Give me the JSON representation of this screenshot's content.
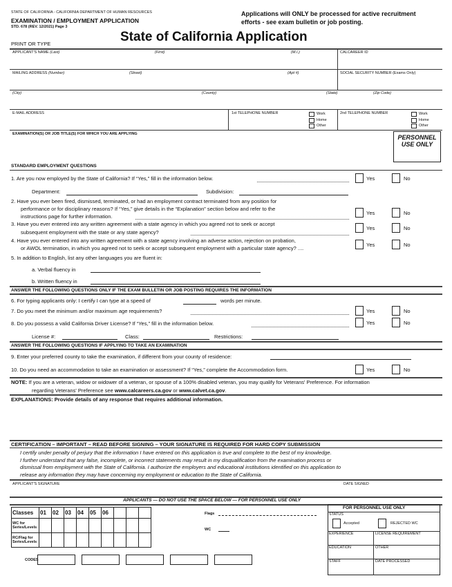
{
  "header": {
    "agency": "STATE OF CALIFORNIA - CALIFORNIA DEPARTMENT OF HUMAN RESOURCES",
    "form_title": "EXAMINATION / EMPLOYMENT APPLICATION",
    "form_number": "STD. 678 (REV. 12/2021) Page 3",
    "notice_line1": "Applications will ONLY be processed for active recruitment",
    "notice_line2": "efforts - see exam bulletin or job posting.",
    "title": "State of California Application",
    "print_or_type": "PRINT OR TYPE"
  },
  "applicant": {
    "name_label": "APPLICANT'S NAME",
    "last": "(Last)",
    "first": "(First)",
    "mi": "(M.I.)",
    "calcareer_id": "CALCAREER ID",
    "mailing_label": "MAILING ADDRESS",
    "number": "(Number)",
    "street": "(Street)",
    "apt": "(Apt #)",
    "ssn": "SOCIAL SECURITY NUMBER (Exams Only)",
    "city": "(City)",
    "county": "(County)",
    "state": "(State)",
    "zip": "(Zip Code)",
    "email": "E-MAIL ADDRESS",
    "phone1": "1st TELEPHONE NUMBER",
    "phone2": "2nd TELEPHONE NUMBER",
    "phone_types": [
      "Work",
      "Home",
      "Other"
    ],
    "exam_titles": "EXAMINATION(S) OR JOB TITLE(S) FOR WHICH YOU ARE APPLYING",
    "personnel_use_1": "PERSONNEL",
    "personnel_use_2": "USE ONLY"
  },
  "yes": "Yes",
  "no": "No",
  "standard": {
    "heading": "STANDARD EMPLOYMENT QUESTIONS",
    "q1": "1.  Are you now employed by the State of California? If “Yes,” fill in the information below.",
    "department": "Department:",
    "subdivision": "Subdivision:",
    "q2a": "2.  Have you ever been fired, dismissed, terminated, or had an employment contract terminated from any position for",
    "q2b": "performance or for disciplinary reasons? If “Yes,” give details in the “Explanation” section below and refer to the",
    "q2c": "instructions page for further information.",
    "q3a": "3.  Have you ever entered into any written agreement with a state agency in which you agreed not to seek or accept",
    "q3b": "subsequent employment with the state or any state agency?",
    "q4a": "4.  Have you ever entered into any written agreement with a state agency involving an adverse action, rejection on probation,",
    "q4b": "or AWOL termination, in which you agreed not to seek or accept subsequent employment with a particular state agency? ....",
    "q5": "5.  In addition to English, list any other languages you are fluent in:",
    "q5a": "a. Verbal fluency in",
    "q5b": "b. Written fluency in"
  },
  "conditional": {
    "heading": "ANSWER THE FOLLOWING QUESTIONS ONLY IF THE EXAM BULLETIN OR JOB POSTING REQUIRES THE INFORMATION",
    "q6a": "6.  For typing applicants only: I certify I can type at a speed of",
    "q6b": "words per minute.",
    "q7": "7.  Do you meet the minimum and/or maximum age requirements?",
    "q8": "8.  Do you possess a valid California Driver License? If “Yes,” fill in the information below.",
    "license": "License #:",
    "class": "Class:",
    "restrictions": "Restrictions:"
  },
  "exam": {
    "heading": "ANSWER THE FOLLOWING QUESTIONS IF APPLYING TO TAKE AN EXAMINATION",
    "q9": "9.  Enter your preferred county to take the examination, if different from your county of residence:",
    "q10": "10. Do you need an accommodation to take an examination or assessment? If “Yes,” complete the Accommodation form."
  },
  "note": {
    "label": "NOTE:",
    "text1": "If you are a veteran, widow or widower of a veteran, or spouse of a 100% disabled veteran, you may qualify for Veterans' Preference. For information",
    "text2": "regarding Veterans' Preference see",
    "link1": "www.calcareers.ca.gov",
    "or": "or",
    "link2": "www.calvet.ca.gov",
    "end": "."
  },
  "explanations": "EXPLANATIONS: Provide details of any response that requires additional information.",
  "certification": {
    "heading": "CERTIFICATION – IMPORTANT – READ BEFORE SIGNING – YOUR SIGNATURE IS REQUIRED FOR HARD COPY SUBMISSION",
    "lines": [
      "I certify under penalty of perjury that the information I have entered on this application is true and complete to the best of my knowledge.",
      "I further understand that any false, incomplete, or incorrect statements may result in my disqualification from the examination process or",
      "dismissal from employment with the State of California. I authorize the employers and educational institutions identified on this application to",
      "release any information they may have concerning my employment or education to the State of California."
    ],
    "signature": "APPLICANT'S SIGNATURE",
    "date_signed": "DATE SIGNED"
  },
  "personnel": {
    "banner": "APPLICANTS — DO NOT USE THE SPACE BELOW — FOR PERSONNEL USE ONLY",
    "classes": "Classes",
    "class_cols": [
      "01",
      "02",
      "03",
      "04",
      "05",
      "06"
    ],
    "wc_row": "WC for Series/Levels",
    "rc_row": "RC/Flag for Series/Levels",
    "flags": "Flags",
    "wc": "WC",
    "codes": "CODES",
    "box_title": "FOR PERSONNEL USE ONLY",
    "status": "STATUS",
    "accepted": "Accepted",
    "rejected": "REJECTED WC",
    "experience": "EXPERIENCE",
    "license_req": "LICENSE REQUIREMENT",
    "education": "EDUCATION",
    "other": "OTHER",
    "staff": "STAFF",
    "date_processed": "DATE PROCESSED"
  }
}
